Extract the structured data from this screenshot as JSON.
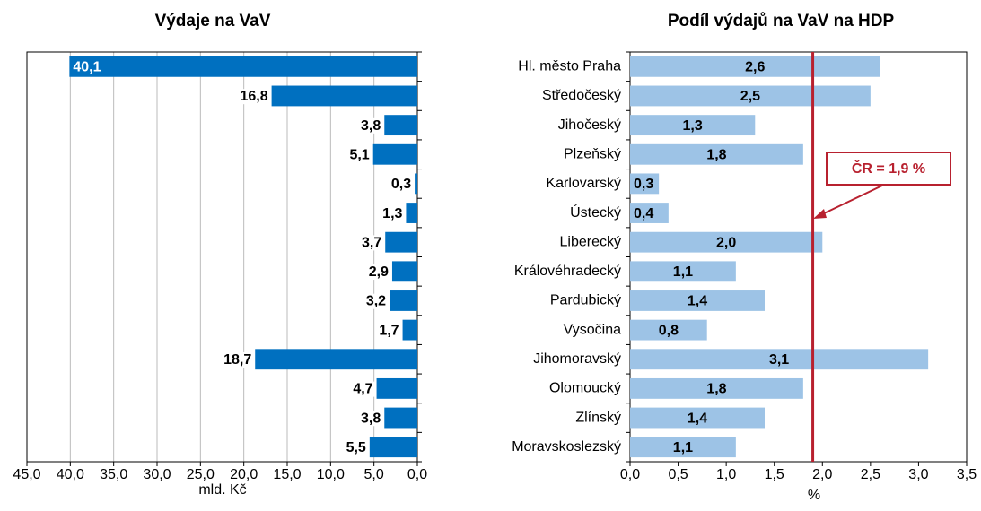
{
  "chart_data": [
    {
      "type": "hbar",
      "title": "Výdaje na VaV",
      "xlabel": "mld. Kč",
      "values": [
        40.1,
        16.8,
        3.8,
        5.1,
        0.3,
        1.3,
        3.7,
        2.9,
        3.2,
        1.7,
        18.7,
        4.7,
        3.8,
        5.5
      ],
      "value_labels": [
        "40,1",
        "16,8",
        "3,8",
        "5,1",
        "0,3",
        "1,3",
        "3,7",
        "2,9",
        "3,2",
        "1,7",
        "18,7",
        "4,7",
        "3,8",
        "5,5"
      ],
      "color": "#0070c0",
      "xlim": [
        0,
        45
      ],
      "x_reversed": true,
      "grid": true,
      "xticks": [
        {
          "value": 45,
          "label": "45,0"
        },
        {
          "value": 40,
          "label": "40,0"
        },
        {
          "value": 35,
          "label": "35,0"
        },
        {
          "value": 30,
          "label": "30,0"
        },
        {
          "value": 25,
          "label": "25,0"
        },
        {
          "value": 20,
          "label": "20,0"
        },
        {
          "value": 15,
          "label": "15,0"
        },
        {
          "value": 10,
          "label": "10,0"
        },
        {
          "value": 5,
          "label": "5,0"
        },
        {
          "value": 0,
          "label": "0,0"
        }
      ]
    },
    {
      "type": "hbar",
      "title": "Podíl výdajů na VaV na HDP",
      "xlabel": "%",
      "categories": [
        "Hl. město Praha",
        "Středočeský",
        "Jihočeský",
        "Plzeňský",
        "Karlovarský",
        "Ústecký",
        "Liberecký",
        "Královéhradecký",
        "Pardubický",
        "Vysočina",
        "Jihomoravský",
        "Olomoucký",
        "Zlínský",
        "Moravskoslezský"
      ],
      "values": [
        2.6,
        2.5,
        1.3,
        1.8,
        0.3,
        0.4,
        2.0,
        1.1,
        1.4,
        0.8,
        3.1,
        1.8,
        1.4,
        1.1
      ],
      "value_labels": [
        "2,6",
        "2,5",
        "1,3",
        "1,8",
        "0,3",
        "0,4",
        "2,0",
        "1,1",
        "1,4",
        "0,8",
        "3,1",
        "1,8",
        "1,4",
        "1,1"
      ],
      "color": "#9dc3e6",
      "xlim": [
        0,
        3.5
      ],
      "x_reversed": false,
      "grid": false,
      "xticks": [
        {
          "value": 0,
          "label": "0,0"
        },
        {
          "value": 0.5,
          "label": "0,5"
        },
        {
          "value": 1,
          "label": "1,0"
        },
        {
          "value": 1.5,
          "label": "1,5"
        },
        {
          "value": 2,
          "label": "2,0"
        },
        {
          "value": 2.5,
          "label": "2,5"
        },
        {
          "value": 3,
          "label": "3,0"
        },
        {
          "value": 3.5,
          "label": "3,5"
        }
      ],
      "reference_line": {
        "value": 1.9,
        "label": "ČR = 1,9 %",
        "color": "#b8212f"
      }
    }
  ]
}
